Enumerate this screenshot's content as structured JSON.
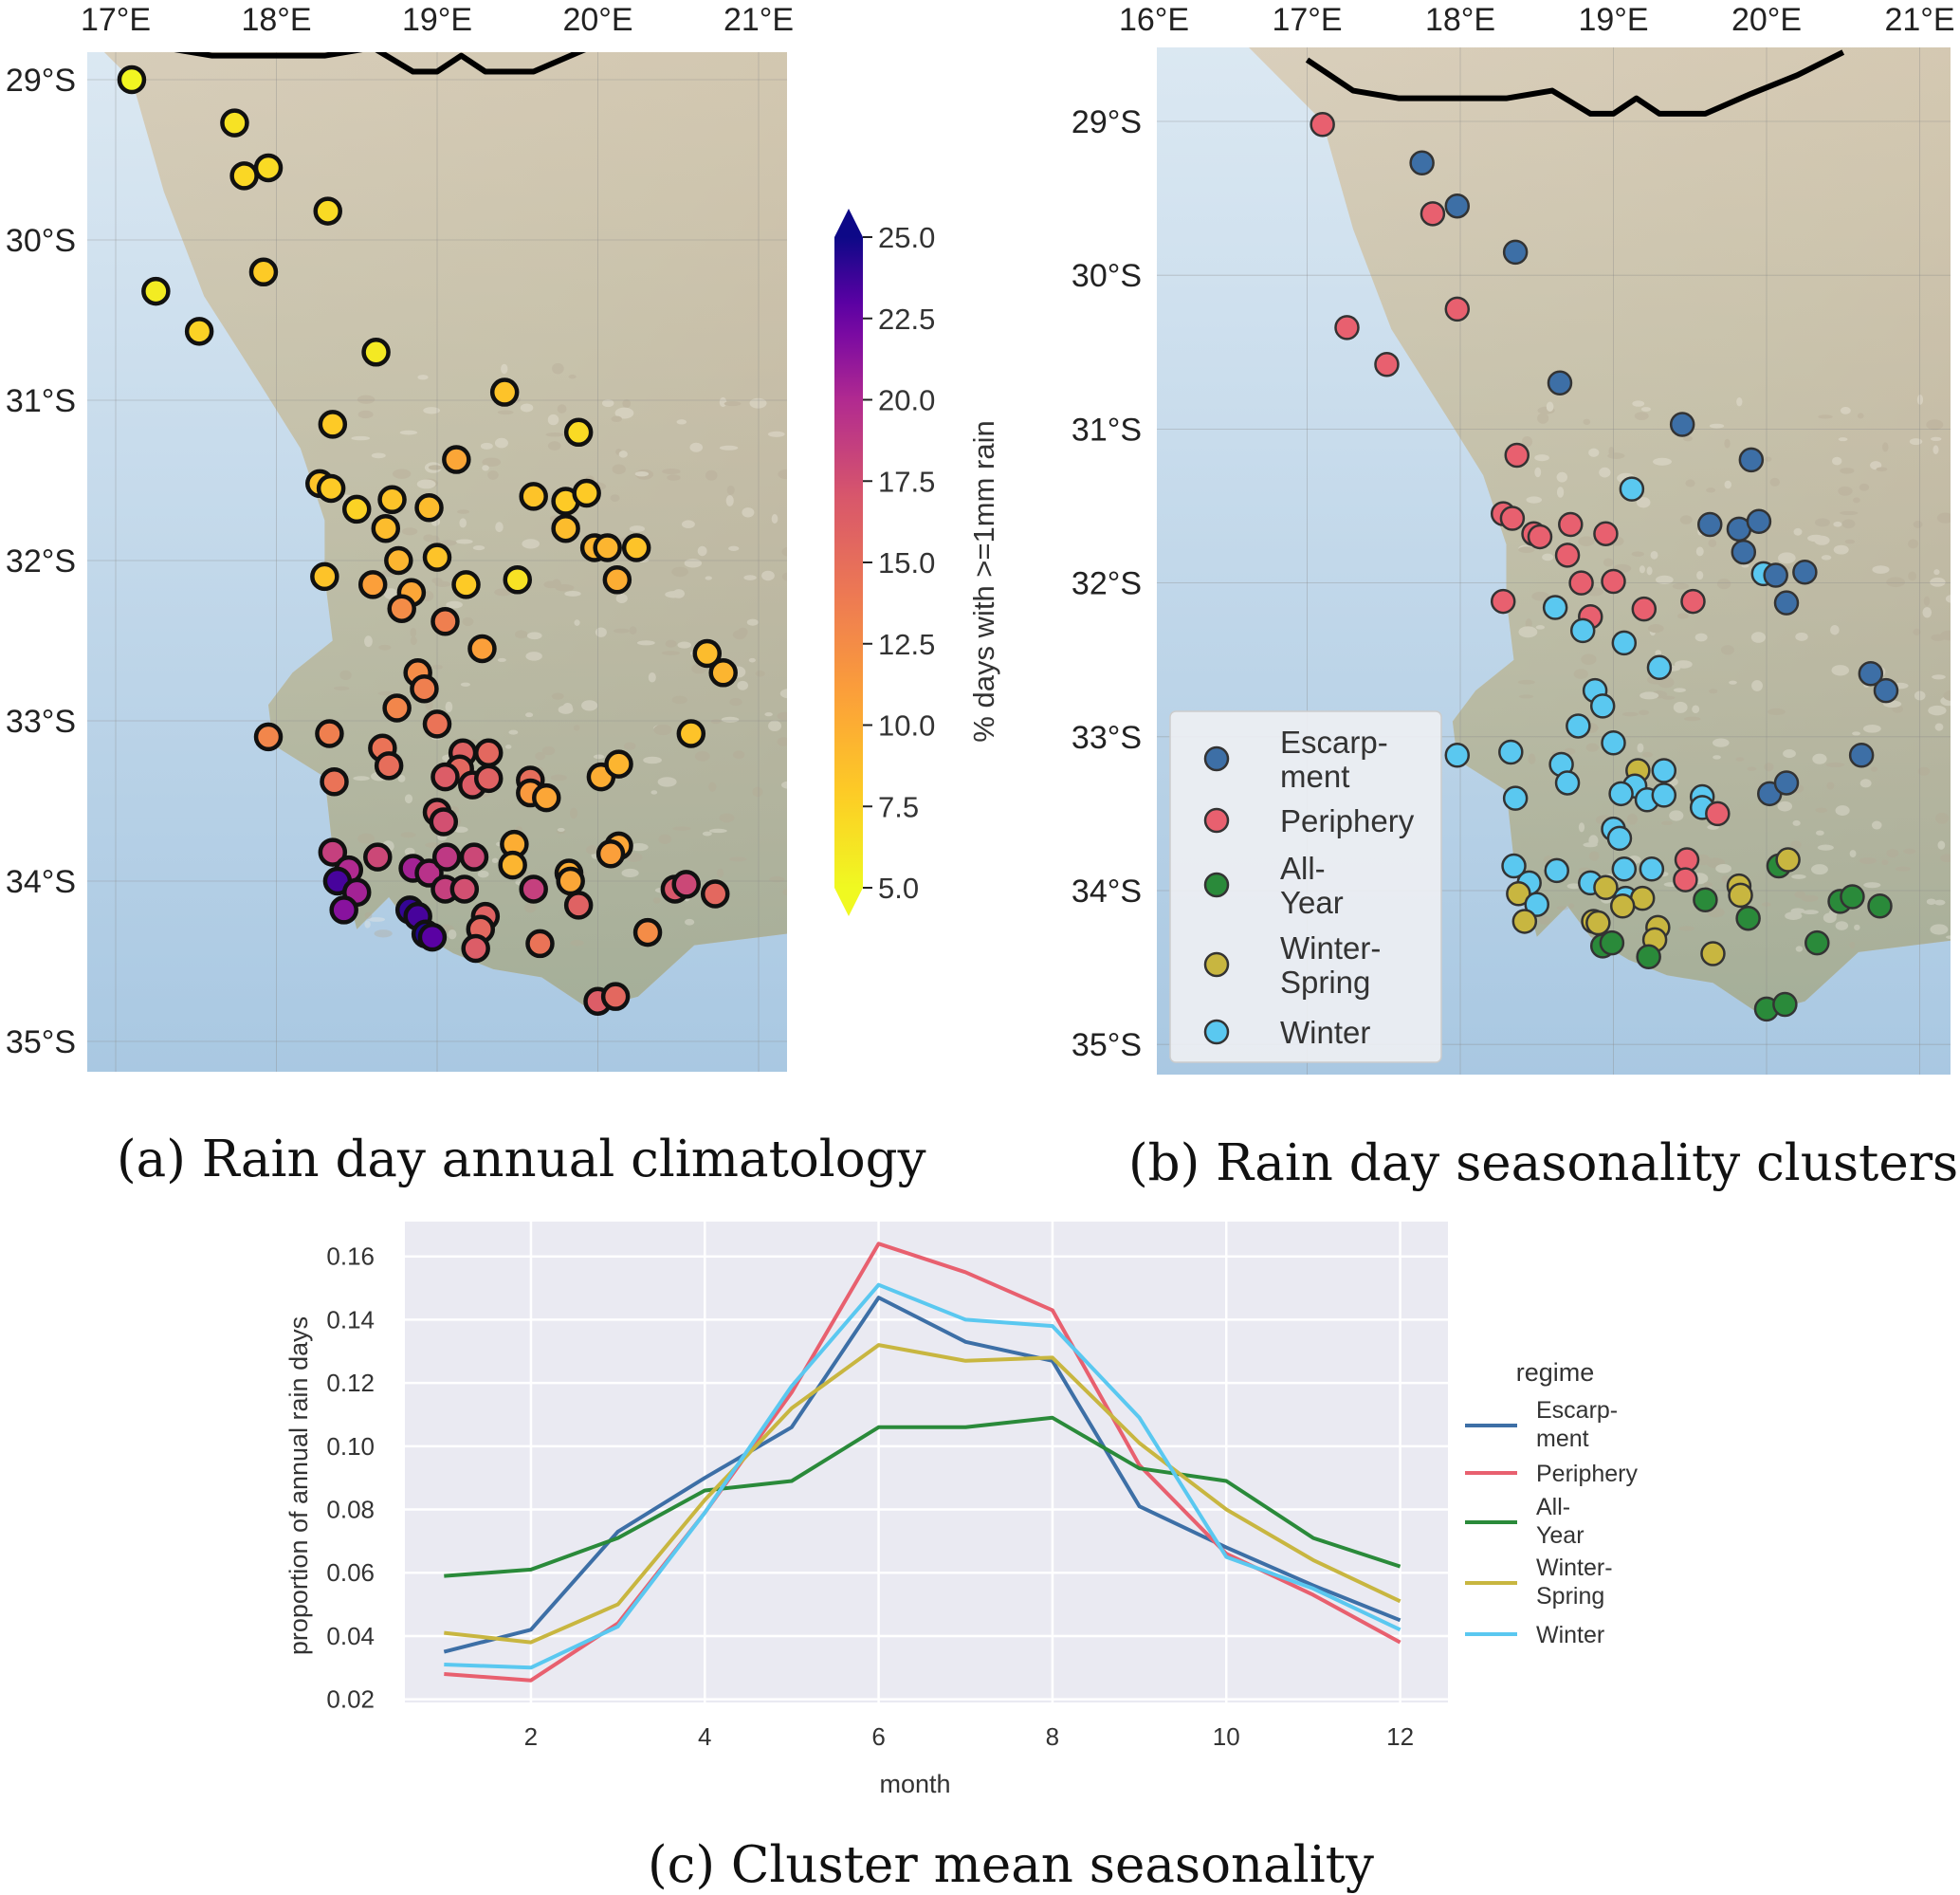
{
  "captions": {
    "a": "(a) Rain day annual climatology",
    "b": "(b) Rain day seasonality clusters",
    "c": "(c) Cluster mean seasonality"
  },
  "colors": {
    "ocean": "#c2d9ea",
    "land": "#d9cbb3",
    "escarpment": "#3d6fa6",
    "periphery": "#e8606f",
    "all_year": "#2a8a3a",
    "winter_spring": "#c8b640",
    "winter": "#5ac8f0",
    "chart_bg": "#eaeaf2"
  },
  "map_a": {
    "lon_ticks": [
      "17°E",
      "18°E",
      "19°E",
      "20°E",
      "21°E"
    ],
    "lat_ticks": [
      "29°S",
      "30°S",
      "31°S",
      "32°S",
      "33°S",
      "34°S",
      "35°S"
    ],
    "colorbar": {
      "label": "% days with >=1mm rain",
      "ticks": [
        "25.0",
        "22.5",
        "20.0",
        "17.5",
        "15.0",
        "12.5",
        "10.0",
        "7.5",
        "5.0"
      ],
      "range": [
        5,
        25
      ],
      "colormap": "plasma_r"
    },
    "stations": [
      {
        "lon": 17.1,
        "lat": 29.0,
        "v": 5.2
      },
      {
        "lon": 17.74,
        "lat": 29.27,
        "v": 6.5
      },
      {
        "lon": 17.8,
        "lat": 29.6,
        "v": 7.2
      },
      {
        "lon": 17.95,
        "lat": 29.55,
        "v": 7.0
      },
      {
        "lon": 18.32,
        "lat": 29.82,
        "v": 7.0
      },
      {
        "lon": 17.25,
        "lat": 30.32,
        "v": 5.8
      },
      {
        "lon": 17.92,
        "lat": 30.2,
        "v": 8.0
      },
      {
        "lon": 17.52,
        "lat": 30.57,
        "v": 7.5
      },
      {
        "lon": 18.62,
        "lat": 30.7,
        "v": 6.0
      },
      {
        "lon": 19.42,
        "lat": 30.95,
        "v": 8.5
      },
      {
        "lon": 18.35,
        "lat": 31.15,
        "v": 8.0
      },
      {
        "lon": 19.88,
        "lat": 31.2,
        "v": 7.0
      },
      {
        "lon": 19.12,
        "lat": 31.37,
        "v": 10.5
      },
      {
        "lon": 18.27,
        "lat": 31.52,
        "v": 8.5
      },
      {
        "lon": 18.34,
        "lat": 31.55,
        "v": 8.0
      },
      {
        "lon": 18.5,
        "lat": 31.68,
        "v": 7.5
      },
      {
        "lon": 18.72,
        "lat": 31.62,
        "v": 8.5
      },
      {
        "lon": 18.95,
        "lat": 31.67,
        "v": 9.0
      },
      {
        "lon": 19.6,
        "lat": 31.6,
        "v": 8.5
      },
      {
        "lon": 19.8,
        "lat": 31.63,
        "v": 8.0
      },
      {
        "lon": 19.93,
        "lat": 31.58,
        "v": 8.0
      },
      {
        "lon": 18.68,
        "lat": 31.8,
        "v": 9.0
      },
      {
        "lon": 19.8,
        "lat": 31.8,
        "v": 9.0
      },
      {
        "lon": 19.98,
        "lat": 31.92,
        "v": 9.5
      },
      {
        "lon": 20.06,
        "lat": 31.92,
        "v": 9.5
      },
      {
        "lon": 20.24,
        "lat": 31.92,
        "v": 8.5
      },
      {
        "lon": 18.76,
        "lat": 32.0,
        "v": 9.5
      },
      {
        "lon": 19.0,
        "lat": 31.98,
        "v": 8.5
      },
      {
        "lon": 18.3,
        "lat": 32.1,
        "v": 8.5
      },
      {
        "lon": 18.6,
        "lat": 32.15,
        "v": 11.0
      },
      {
        "lon": 18.84,
        "lat": 32.2,
        "v": 10.5
      },
      {
        "lon": 19.18,
        "lat": 32.15,
        "v": 8.0
      },
      {
        "lon": 19.5,
        "lat": 32.12,
        "v": 6.5
      },
      {
        "lon": 20.12,
        "lat": 32.12,
        "v": 10.0
      },
      {
        "lon": 18.78,
        "lat": 32.3,
        "v": 12.5
      },
      {
        "lon": 19.05,
        "lat": 32.38,
        "v": 13.5
      },
      {
        "lon": 19.28,
        "lat": 32.55,
        "v": 11.0
      },
      {
        "lon": 20.68,
        "lat": 32.58,
        "v": 9.0
      },
      {
        "lon": 20.78,
        "lat": 32.7,
        "v": 9.5
      },
      {
        "lon": 18.88,
        "lat": 32.7,
        "v": 12.5
      },
      {
        "lon": 18.92,
        "lat": 32.8,
        "v": 13.5
      },
      {
        "lon": 18.75,
        "lat": 32.92,
        "v": 13.0
      },
      {
        "lon": 19.0,
        "lat": 33.02,
        "v": 14.5
      },
      {
        "lon": 17.95,
        "lat": 33.1,
        "v": 13.0
      },
      {
        "lon": 18.33,
        "lat": 33.08,
        "v": 13.5
      },
      {
        "lon": 18.66,
        "lat": 33.17,
        "v": 14.5
      },
      {
        "lon": 18.7,
        "lat": 33.28,
        "v": 15.0
      },
      {
        "lon": 20.58,
        "lat": 33.08,
        "v": 8.5
      },
      {
        "lon": 19.16,
        "lat": 33.2,
        "v": 16.0
      },
      {
        "lon": 19.32,
        "lat": 33.2,
        "v": 15.5
      },
      {
        "lon": 19.14,
        "lat": 33.3,
        "v": 15.5
      },
      {
        "lon": 19.05,
        "lat": 33.35,
        "v": 16.5
      },
      {
        "lon": 19.22,
        "lat": 33.4,
        "v": 16.5
      },
      {
        "lon": 19.32,
        "lat": 33.36,
        "v": 16.0
      },
      {
        "lon": 19.58,
        "lat": 33.37,
        "v": 15.0
      },
      {
        "lon": 19.58,
        "lat": 33.45,
        "v": 11.5
      },
      {
        "lon": 19.68,
        "lat": 33.48,
        "v": 10.5
      },
      {
        "lon": 20.02,
        "lat": 33.35,
        "v": 10.0
      },
      {
        "lon": 20.13,
        "lat": 33.27,
        "v": 9.5
      },
      {
        "lon": 18.36,
        "lat": 33.38,
        "v": 14.5
      },
      {
        "lon": 19.0,
        "lat": 33.57,
        "v": 16.5
      },
      {
        "lon": 19.04,
        "lat": 33.63,
        "v": 17.5
      },
      {
        "lon": 19.48,
        "lat": 33.77,
        "v": 10.0
      },
      {
        "lon": 20.13,
        "lat": 33.78,
        "v": 10.5
      },
      {
        "lon": 20.08,
        "lat": 33.83,
        "v": 11.0
      },
      {
        "lon": 18.35,
        "lat": 33.82,
        "v": 18.5
      },
      {
        "lon": 18.63,
        "lat": 33.85,
        "v": 18.0
      },
      {
        "lon": 18.45,
        "lat": 33.93,
        "v": 20.0
      },
      {
        "lon": 18.38,
        "lat": 34.0,
        "v": 23.5
      },
      {
        "lon": 18.5,
        "lat": 34.07,
        "v": 20.5
      },
      {
        "lon": 18.42,
        "lat": 34.18,
        "v": 21.5
      },
      {
        "lon": 18.85,
        "lat": 33.92,
        "v": 20.5
      },
      {
        "lon": 18.95,
        "lat": 33.95,
        "v": 19.5
      },
      {
        "lon": 19.06,
        "lat": 33.85,
        "v": 19.0
      },
      {
        "lon": 19.23,
        "lat": 33.85,
        "v": 18.0
      },
      {
        "lon": 19.47,
        "lat": 33.9,
        "v": 9.5
      },
      {
        "lon": 19.82,
        "lat": 33.95,
        "v": 10.0
      },
      {
        "lon": 19.83,
        "lat": 34.0,
        "v": 10.5
      },
      {
        "lon": 19.05,
        "lat": 34.05,
        "v": 18.5
      },
      {
        "lon": 19.17,
        "lat": 34.05,
        "v": 17.5
      },
      {
        "lon": 19.6,
        "lat": 34.05,
        "v": 18.5
      },
      {
        "lon": 19.88,
        "lat": 34.15,
        "v": 16.0
      },
      {
        "lon": 20.48,
        "lat": 34.05,
        "v": 17.0
      },
      {
        "lon": 20.55,
        "lat": 34.02,
        "v": 18.0
      },
      {
        "lon": 20.73,
        "lat": 34.08,
        "v": 15.5
      },
      {
        "lon": 18.83,
        "lat": 34.18,
        "v": 24.0
      },
      {
        "lon": 18.88,
        "lat": 34.22,
        "v": 23.5
      },
      {
        "lon": 18.93,
        "lat": 34.33,
        "v": 24.5
      },
      {
        "lon": 18.97,
        "lat": 34.35,
        "v": 23.0
      },
      {
        "lon": 19.3,
        "lat": 34.22,
        "v": 16.0
      },
      {
        "lon": 19.27,
        "lat": 34.3,
        "v": 15.5
      },
      {
        "lon": 19.24,
        "lat": 34.42,
        "v": 16.5
      },
      {
        "lon": 19.64,
        "lat": 34.39,
        "v": 14.5
      },
      {
        "lon": 20.31,
        "lat": 34.32,
        "v": 12.5
      },
      {
        "lon": 20.0,
        "lat": 34.75,
        "v": 16.5
      },
      {
        "lon": 20.11,
        "lat": 34.72,
        "v": 15.5
      }
    ]
  },
  "map_b": {
    "lon_ticks": [
      "16°E",
      "17°E",
      "18°E",
      "19°E",
      "20°E",
      "21°E"
    ],
    "lat_ticks": [
      "29°S",
      "30°S",
      "31°S",
      "32°S",
      "33°S",
      "34°S",
      "35°S"
    ],
    "legend": [
      {
        "key": "E",
        "lines": [
          "Escarp-",
          "ment"
        ]
      },
      {
        "key": "P",
        "lines": [
          "Periphery"
        ]
      },
      {
        "key": "A",
        "lines": [
          "All-",
          "Year"
        ]
      },
      {
        "key": "S",
        "lines": [
          "Winter-",
          "Spring"
        ]
      },
      {
        "key": "W",
        "lines": [
          "Winter"
        ]
      }
    ],
    "stations": [
      {
        "lon": 17.1,
        "lat": 29.02,
        "c": "P"
      },
      {
        "lon": 17.75,
        "lat": 29.27,
        "c": "E"
      },
      {
        "lon": 17.82,
        "lat": 29.6,
        "c": "P"
      },
      {
        "lon": 17.98,
        "lat": 29.55,
        "c": "E"
      },
      {
        "lon": 18.36,
        "lat": 29.85,
        "c": "E"
      },
      {
        "lon": 17.98,
        "lat": 30.22,
        "c": "P"
      },
      {
        "lon": 17.26,
        "lat": 30.34,
        "c": "P"
      },
      {
        "lon": 17.52,
        "lat": 30.58,
        "c": "P"
      },
      {
        "lon": 18.65,
        "lat": 30.7,
        "c": "E"
      },
      {
        "lon": 19.45,
        "lat": 30.97,
        "c": "E"
      },
      {
        "lon": 18.37,
        "lat": 31.17,
        "c": "P"
      },
      {
        "lon": 19.9,
        "lat": 31.2,
        "c": "E"
      },
      {
        "lon": 19.12,
        "lat": 31.39,
        "c": "W"
      },
      {
        "lon": 18.28,
        "lat": 31.55,
        "c": "P"
      },
      {
        "lon": 18.34,
        "lat": 31.58,
        "c": "P"
      },
      {
        "lon": 18.48,
        "lat": 31.68,
        "c": "P"
      },
      {
        "lon": 18.52,
        "lat": 31.7,
        "c": "P"
      },
      {
        "lon": 18.72,
        "lat": 31.62,
        "c": "P"
      },
      {
        "lon": 18.95,
        "lat": 31.68,
        "c": "P"
      },
      {
        "lon": 19.63,
        "lat": 31.62,
        "c": "E"
      },
      {
        "lon": 19.82,
        "lat": 31.65,
        "c": "E"
      },
      {
        "lon": 19.95,
        "lat": 31.6,
        "c": "E"
      },
      {
        "lon": 18.7,
        "lat": 31.82,
        "c": "P"
      },
      {
        "lon": 19.85,
        "lat": 31.8,
        "c": "E"
      },
      {
        "lon": 19.98,
        "lat": 31.94,
        "c": "W"
      },
      {
        "lon": 20.06,
        "lat": 31.95,
        "c": "E"
      },
      {
        "lon": 20.25,
        "lat": 31.93,
        "c": "E"
      },
      {
        "lon": 18.79,
        "lat": 32.0,
        "c": "P"
      },
      {
        "lon": 19.0,
        "lat": 31.99,
        "c": "P"
      },
      {
        "lon": 18.28,
        "lat": 32.12,
        "c": "P"
      },
      {
        "lon": 18.62,
        "lat": 32.16,
        "c": "W"
      },
      {
        "lon": 18.85,
        "lat": 32.22,
        "c": "P"
      },
      {
        "lon": 19.2,
        "lat": 32.17,
        "c": "P"
      },
      {
        "lon": 19.52,
        "lat": 32.12,
        "c": "P"
      },
      {
        "lon": 20.13,
        "lat": 32.13,
        "c": "E"
      },
      {
        "lon": 18.8,
        "lat": 32.31,
        "c": "W"
      },
      {
        "lon": 19.07,
        "lat": 32.39,
        "c": "W"
      },
      {
        "lon": 19.3,
        "lat": 32.55,
        "c": "W"
      },
      {
        "lon": 20.68,
        "lat": 32.59,
        "c": "E"
      },
      {
        "lon": 20.78,
        "lat": 32.7,
        "c": "E"
      },
      {
        "lon": 18.88,
        "lat": 32.7,
        "c": "W"
      },
      {
        "lon": 18.93,
        "lat": 32.8,
        "c": "W"
      },
      {
        "lon": 18.77,
        "lat": 32.93,
        "c": "W"
      },
      {
        "lon": 19.0,
        "lat": 33.04,
        "c": "W"
      },
      {
        "lon": 17.98,
        "lat": 33.12,
        "c": "W"
      },
      {
        "lon": 18.33,
        "lat": 33.1,
        "c": "W"
      },
      {
        "lon": 18.66,
        "lat": 33.18,
        "c": "W"
      },
      {
        "lon": 18.7,
        "lat": 33.3,
        "c": "W"
      },
      {
        "lon": 19.16,
        "lat": 33.22,
        "c": "S"
      },
      {
        "lon": 19.33,
        "lat": 33.22,
        "c": "W"
      },
      {
        "lon": 19.14,
        "lat": 33.32,
        "c": "W"
      },
      {
        "lon": 19.05,
        "lat": 33.37,
        "c": "W"
      },
      {
        "lon": 19.22,
        "lat": 33.41,
        "c": "W"
      },
      {
        "lon": 19.33,
        "lat": 33.38,
        "c": "W"
      },
      {
        "lon": 19.58,
        "lat": 33.39,
        "c": "W"
      },
      {
        "lon": 19.58,
        "lat": 33.46,
        "c": "W"
      },
      {
        "lon": 19.68,
        "lat": 33.5,
        "c": "P"
      },
      {
        "lon": 20.02,
        "lat": 33.37,
        "c": "E"
      },
      {
        "lon": 20.13,
        "lat": 33.3,
        "c": "E"
      },
      {
        "lon": 18.36,
        "lat": 33.4,
        "c": "W"
      },
      {
        "lon": 19.0,
        "lat": 33.6,
        "c": "W"
      },
      {
        "lon": 19.04,
        "lat": 33.66,
        "c": "W"
      },
      {
        "lon": 19.48,
        "lat": 33.8,
        "c": "P"
      },
      {
        "lon": 20.08,
        "lat": 33.84,
        "c": "A"
      },
      {
        "lon": 20.14,
        "lat": 33.8,
        "c": "S"
      },
      {
        "lon": 18.35,
        "lat": 33.84,
        "c": "W"
      },
      {
        "lon": 18.63,
        "lat": 33.87,
        "c": "W"
      },
      {
        "lon": 18.45,
        "lat": 33.95,
        "c": "W"
      },
      {
        "lon": 18.38,
        "lat": 34.02,
        "c": "S"
      },
      {
        "lon": 18.5,
        "lat": 34.09,
        "c": "W"
      },
      {
        "lon": 18.42,
        "lat": 34.2,
        "c": "S"
      },
      {
        "lon": 18.85,
        "lat": 33.95,
        "c": "W"
      },
      {
        "lon": 18.95,
        "lat": 33.98,
        "c": "S"
      },
      {
        "lon": 19.07,
        "lat": 33.86,
        "c": "W"
      },
      {
        "lon": 19.25,
        "lat": 33.86,
        "c": "W"
      },
      {
        "lon": 19.47,
        "lat": 33.93,
        "c": "P"
      },
      {
        "lon": 19.82,
        "lat": 33.97,
        "c": "S"
      },
      {
        "lon": 19.83,
        "lat": 34.03,
        "c": "S"
      },
      {
        "lon": 19.08,
        "lat": 34.05,
        "c": "W"
      },
      {
        "lon": 19.19,
        "lat": 34.05,
        "c": "S"
      },
      {
        "lon": 19.06,
        "lat": 34.1,
        "c": "S"
      },
      {
        "lon": 18.87,
        "lat": 34.2,
        "c": "S"
      },
      {
        "lon": 18.9,
        "lat": 34.21,
        "c": "S"
      },
      {
        "lon": 19.6,
        "lat": 34.06,
        "c": "A"
      },
      {
        "lon": 19.88,
        "lat": 34.18,
        "c": "A"
      },
      {
        "lon": 20.48,
        "lat": 34.07,
        "c": "A"
      },
      {
        "lon": 20.56,
        "lat": 34.04,
        "c": "A"
      },
      {
        "lon": 20.74,
        "lat": 34.1,
        "c": "A"
      },
      {
        "lon": 18.93,
        "lat": 34.36,
        "c": "A"
      },
      {
        "lon": 18.99,
        "lat": 34.34,
        "c": "A"
      },
      {
        "lon": 19.29,
        "lat": 34.24,
        "c": "S"
      },
      {
        "lon": 19.27,
        "lat": 34.32,
        "c": "S"
      },
      {
        "lon": 19.23,
        "lat": 34.43,
        "c": "A"
      },
      {
        "lon": 19.65,
        "lat": 34.41,
        "c": "S"
      },
      {
        "lon": 20.33,
        "lat": 34.34,
        "c": "A"
      },
      {
        "lon": 20.0,
        "lat": 34.77,
        "c": "A"
      },
      {
        "lon": 20.12,
        "lat": 34.74,
        "c": "A"
      },
      {
        "lon": 20.62,
        "lat": 33.12,
        "c": "E"
      }
    ]
  },
  "chart_data": {
    "type": "line",
    "title": "",
    "xlabel": "month",
    "ylabel": "proportion of annual rain days",
    "x": [
      1,
      2,
      3,
      4,
      5,
      6,
      7,
      8,
      9,
      10,
      11,
      12
    ],
    "xticks": [
      2,
      4,
      6,
      8,
      10,
      12
    ],
    "xlim": [
      0.55,
      12.55
    ],
    "yticks": [
      0.02,
      0.04,
      0.06,
      0.08,
      0.1,
      0.12,
      0.14,
      0.16
    ],
    "ytick_labels": [
      "0.02",
      "0.04",
      "0.06",
      "0.08",
      "0.10",
      "0.12",
      "0.14",
      "0.16"
    ],
    "ylim": [
      0.019,
      0.171
    ],
    "grid": true,
    "legend_title": "regime",
    "legend_position": "right",
    "series": [
      {
        "name": "Escarp-ment",
        "label_lines": [
          "Escarp-",
          "ment"
        ],
        "key": "E",
        "values": [
          0.035,
          0.042,
          0.073,
          0.09,
          0.106,
          0.147,
          0.133,
          0.127,
          0.081,
          0.068,
          0.056,
          0.045
        ]
      },
      {
        "name": "Periphery",
        "label_lines": [
          "Periphery"
        ],
        "key": "P",
        "values": [
          0.028,
          0.026,
          0.044,
          0.079,
          0.117,
          0.164,
          0.155,
          0.143,
          0.094,
          0.066,
          0.053,
          0.038
        ]
      },
      {
        "name": "All-Year",
        "label_lines": [
          "All-",
          "Year"
        ],
        "key": "A",
        "values": [
          0.059,
          0.061,
          0.071,
          0.086,
          0.089,
          0.106,
          0.106,
          0.109,
          0.093,
          0.089,
          0.071,
          0.062
        ]
      },
      {
        "name": "Winter-Spring",
        "label_lines": [
          "Winter-",
          "Spring"
        ],
        "key": "S",
        "values": [
          0.041,
          0.038,
          0.05,
          0.083,
          0.112,
          0.132,
          0.127,
          0.128,
          0.101,
          0.08,
          0.064,
          0.051
        ]
      },
      {
        "name": "Winter",
        "label_lines": [
          "Winter"
        ],
        "key": "W",
        "values": [
          0.031,
          0.03,
          0.043,
          0.079,
          0.119,
          0.151,
          0.14,
          0.138,
          0.109,
          0.065,
          0.055,
          0.042
        ]
      }
    ]
  }
}
